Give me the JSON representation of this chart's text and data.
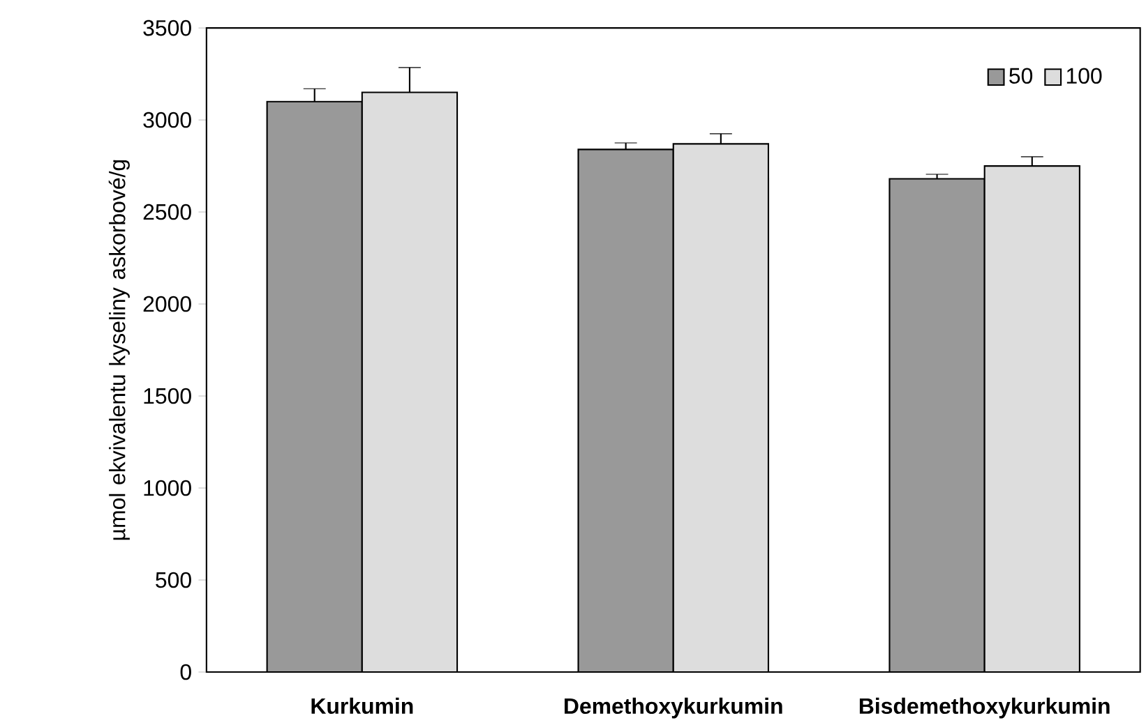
{
  "chart_data": {
    "type": "bar",
    "ylabel": "µmol ekvivalentu kyseliny askorbové/g",
    "categories": [
      "Kurkumin",
      "Demethoxykurkumin",
      "Bisdemethoxykurkumin"
    ],
    "series": [
      {
        "name": "50",
        "color": "#999999",
        "values": [
          3100,
          2840,
          2680
        ],
        "errors": [
          70,
          35,
          25
        ]
      },
      {
        "name": "100",
        "color": "#dddddd",
        "values": [
          3150,
          2870,
          2750
        ],
        "errors": [
          135,
          55,
          50
        ]
      }
    ],
    "ylim": [
      0,
      3500
    ],
    "yticks": [
      0,
      500,
      1000,
      1500,
      2000,
      2500,
      3000,
      3500
    ],
    "legend": "top right",
    "grid": false
  }
}
